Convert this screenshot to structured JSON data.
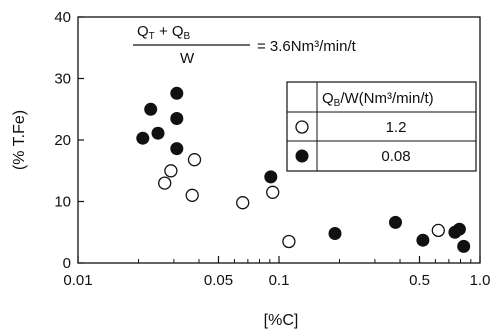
{
  "chart_data": {
    "type": "scatter",
    "xlabel": "[%C]",
    "ylabel": "(% T.Fe)",
    "x_scale": "log",
    "xlim": [
      0.01,
      1.0
    ],
    "ylim": [
      0,
      40
    ],
    "x_ticks": [
      {
        "value": 0.01,
        "label": "0.01"
      },
      {
        "value": 0.05,
        "label": "0.05"
      },
      {
        "value": 0.1,
        "label": "0.1"
      },
      {
        "value": 0.5,
        "label": "0.5"
      },
      {
        "value": 1.0,
        "label": "1.0"
      }
    ],
    "y_ticks": [
      {
        "value": 0,
        "label": "0"
      },
      {
        "value": 10,
        "label": "10"
      },
      {
        "value": 20,
        "label": "20"
      },
      {
        "value": 30,
        "label": "30"
      },
      {
        "value": 40,
        "label": "40"
      }
    ],
    "annotation": {
      "numerator": "Q",
      "numerator_sub1": "T",
      "numerator_plus": " + Q",
      "numerator_sub2": "B",
      "denominator": "W",
      "equals": "= 3.6Nm³/min/t"
    },
    "legend": {
      "header": "Q",
      "header_sub": "B",
      "header_rest": "/W(Nm³/min/t)",
      "placement": "top-right"
    },
    "series": [
      {
        "name": "1.2",
        "marker": "open-circle",
        "points": [
          [
            0.027,
            13
          ],
          [
            0.029,
            15
          ],
          [
            0.038,
            16.8
          ],
          [
            0.037,
            11
          ],
          [
            0.066,
            9.8
          ],
          [
            0.093,
            11.5
          ],
          [
            0.112,
            3.5
          ],
          [
            0.62,
            5.3
          ]
        ]
      },
      {
        "name": "0.08",
        "marker": "filled-circle",
        "points": [
          [
            0.021,
            20.3
          ],
          [
            0.023,
            25
          ],
          [
            0.025,
            21.1
          ],
          [
            0.031,
            27.6
          ],
          [
            0.031,
            23.5
          ],
          [
            0.031,
            18.6
          ],
          [
            0.091,
            14
          ],
          [
            0.19,
            4.8
          ],
          [
            0.38,
            6.6
          ],
          [
            0.52,
            3.7
          ],
          [
            0.75,
            5.0
          ],
          [
            0.79,
            5.5
          ],
          [
            0.83,
            2.7
          ]
        ]
      }
    ]
  }
}
